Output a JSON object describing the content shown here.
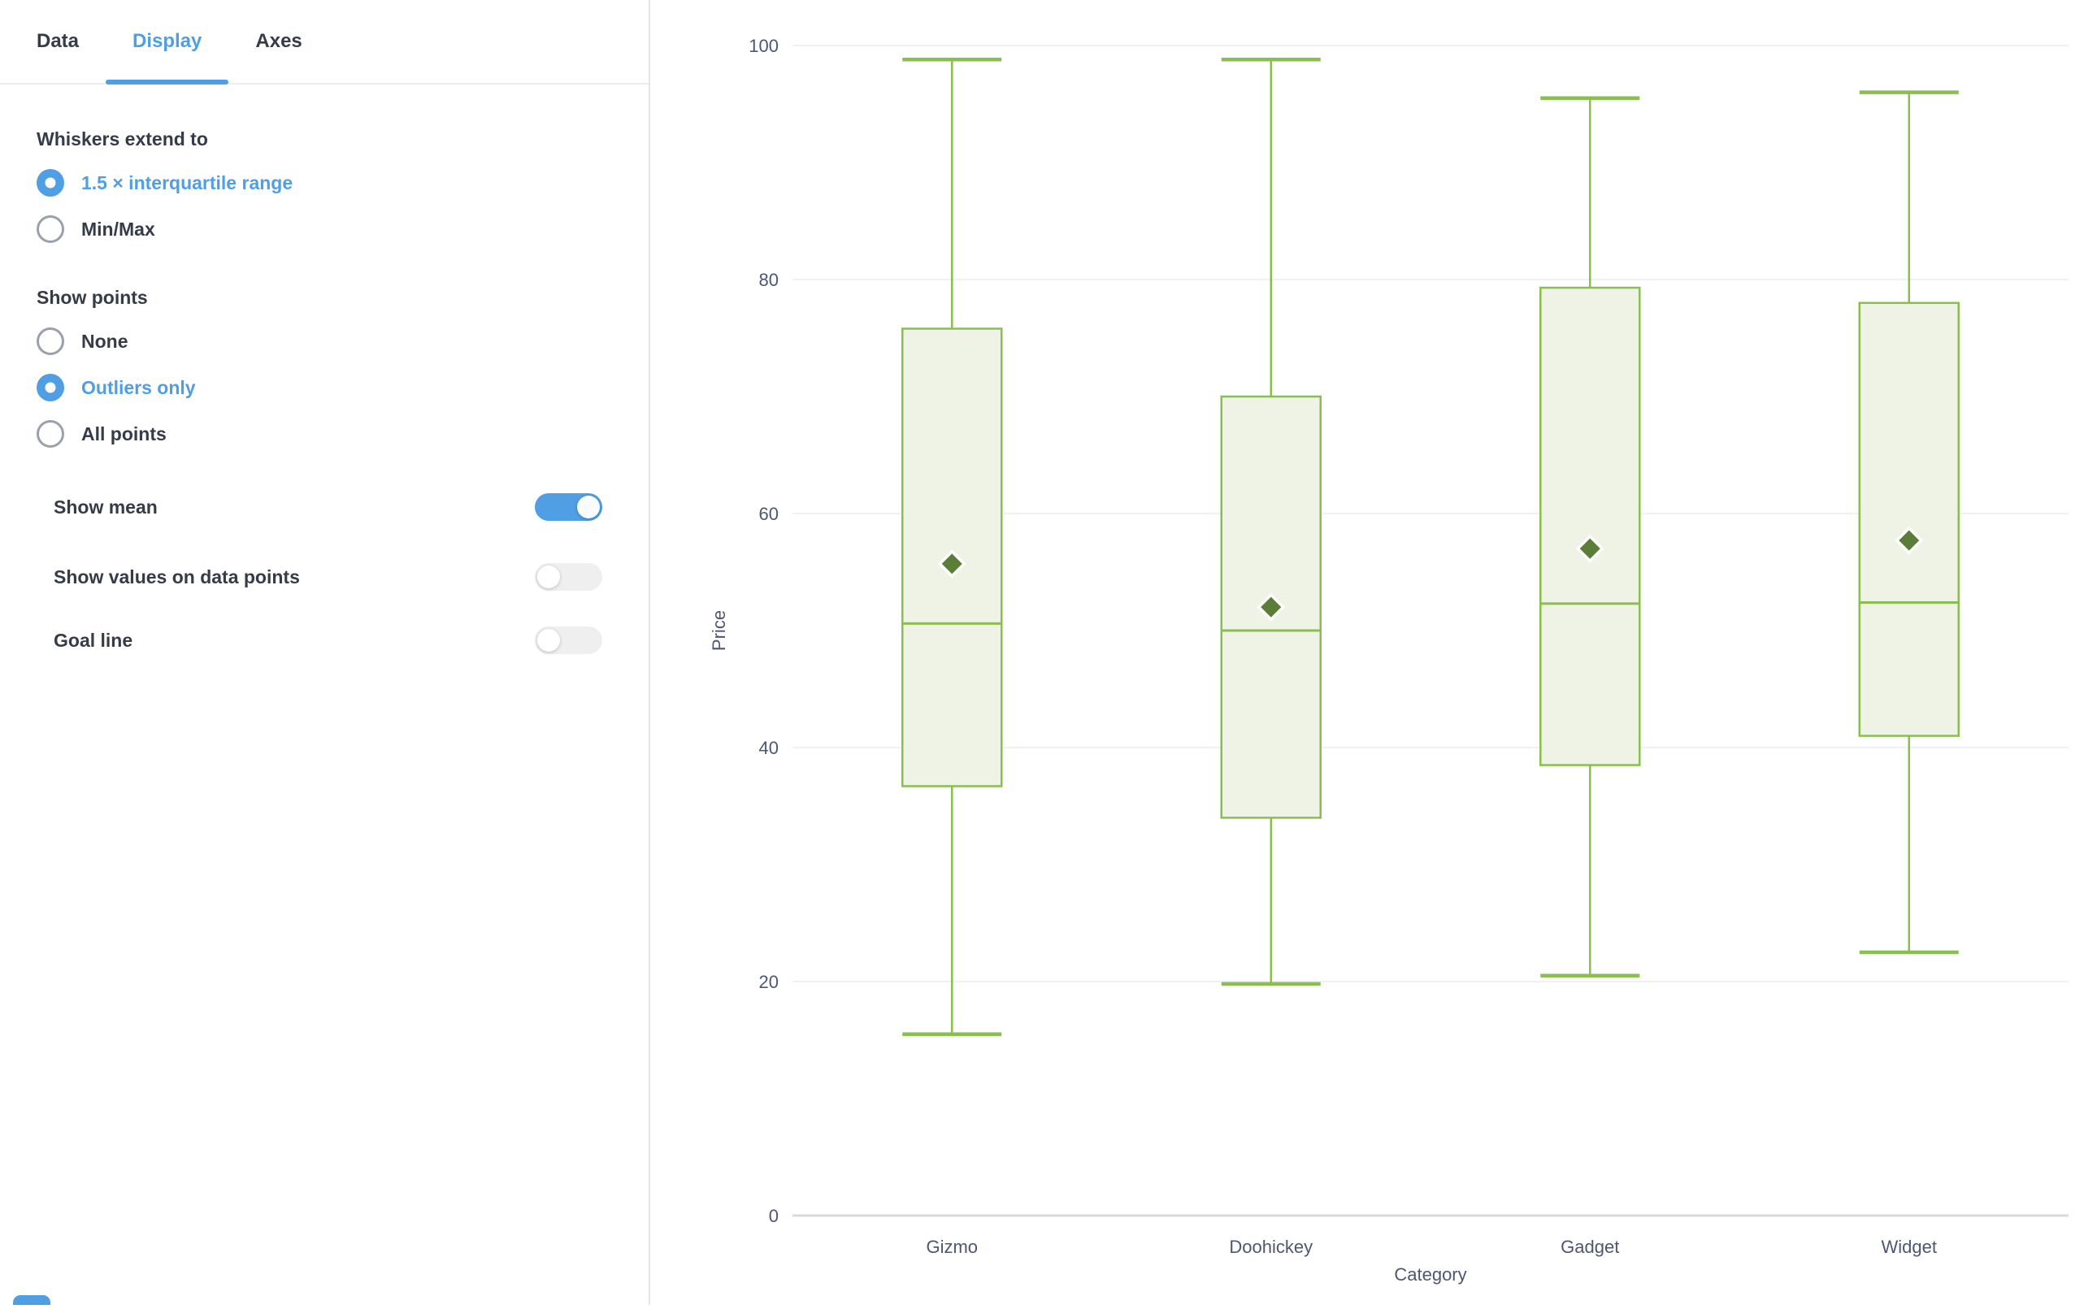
{
  "colors": {
    "accent_blue": "#509EE3",
    "chart_green": "#88BF4D",
    "box_fill": "#EEF3E6",
    "mean_diamond": "#5A7D37",
    "grid_line": "#F1F1F1",
    "axis_line": "#D9D9D9",
    "panel_text": "#353B48",
    "axis_text": "#4C5773"
  },
  "panel": {
    "tabs": [
      {
        "label": "Data",
        "active": false
      },
      {
        "label": "Display",
        "active": true
      },
      {
        "label": "Axes",
        "active": false
      }
    ],
    "whiskers": {
      "heading": "Whiskers extend to",
      "options": [
        {
          "label": "1.5 × interquartile range",
          "selected": true
        },
        {
          "label": "Min/Max",
          "selected": false
        }
      ]
    },
    "show_points": {
      "heading": "Show points",
      "options": [
        {
          "label": "None",
          "selected": false
        },
        {
          "label": "Outliers only",
          "selected": true
        },
        {
          "label": "All points",
          "selected": false
        }
      ]
    },
    "toggles": [
      {
        "label": "Show mean",
        "on": true
      },
      {
        "label": "Show values on data points",
        "on": false
      },
      {
        "label": "Goal line",
        "on": false
      }
    ]
  },
  "chart_data": {
    "type": "boxplot",
    "xlabel": "Category",
    "ylabel": "Price",
    "ylim": [
      0,
      100
    ],
    "yticks": [
      0,
      20,
      40,
      60,
      80,
      100
    ],
    "grid": true,
    "legend_position": "none",
    "whisker_mode": "1.5 × interquartile range",
    "show_mean": true,
    "show_points": "Outliers only",
    "categories": [
      "Gizmo",
      "Doohickey",
      "Gadget",
      "Widget"
    ],
    "series": [
      {
        "category": "Gizmo",
        "whisker_low": 15.5,
        "q1": 36.7,
        "median": 50.6,
        "mean": 55.7,
        "q3": 75.8,
        "whisker_high": 98.8,
        "outliers": []
      },
      {
        "category": "Doohickey",
        "whisker_low": 19.8,
        "q1": 34.0,
        "median": 50.0,
        "mean": 52.0,
        "q3": 70.0,
        "whisker_high": 98.8,
        "outliers": []
      },
      {
        "category": "Gadget",
        "whisker_low": 20.5,
        "q1": 38.5,
        "median": 52.3,
        "mean": 57.0,
        "q3": 79.3,
        "whisker_high": 95.5,
        "outliers": []
      },
      {
        "category": "Widget",
        "whisker_low": 22.5,
        "q1": 41.0,
        "median": 52.4,
        "mean": 57.7,
        "q3": 78.0,
        "whisker_high": 96.0,
        "outliers": []
      }
    ]
  }
}
